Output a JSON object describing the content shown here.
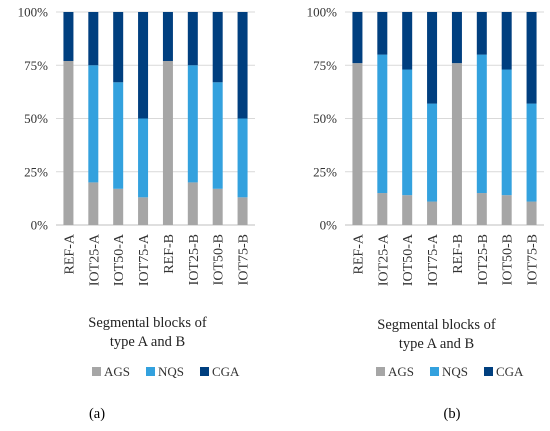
{
  "chart_data": [
    {
      "type": "bar",
      "stacked": true,
      "panel_label": "(a)",
      "categories": [
        "REF-A",
        "IOT25-A",
        "IOT50-A",
        "IOT75-A",
        "REF-B",
        "IOT25-B",
        "IOT50-B",
        "IOT75-B"
      ],
      "series": [
        {
          "name": "AGS",
          "color": "#a6a6a6",
          "values": [
            77,
            20,
            17,
            13,
            77,
            20,
            17,
            13
          ]
        },
        {
          "name": "NQS",
          "color": "#33a1de",
          "values": [
            0,
            55,
            50,
            37,
            0,
            55,
            50,
            37
          ]
        },
        {
          "name": "CGA",
          "color": "#003f7f",
          "values": [
            23,
            25,
            33,
            50,
            23,
            25,
            33,
            50
          ]
        }
      ],
      "ylim": [
        0,
        100
      ],
      "yticks": [
        "0%",
        "25%",
        "50%",
        "75%",
        "100%"
      ],
      "xlabel_lines": [
        "Segmental blocks of",
        "type A and B"
      ],
      "grid": true,
      "legend": "bottom"
    },
    {
      "type": "bar",
      "stacked": true,
      "panel_label": "(b)",
      "categories": [
        "REF-A",
        "IOT25-A",
        "IOT50-A",
        "IOT75-A",
        "REF-B",
        "IOT25-B",
        "IOT50-B",
        "IOT75-B"
      ],
      "series": [
        {
          "name": "AGS",
          "color": "#a6a6a6",
          "values": [
            76,
            15,
            14,
            11,
            76,
            15,
            14,
            11
          ]
        },
        {
          "name": "NQS",
          "color": "#33a1de",
          "values": [
            0,
            65,
            59,
            46,
            0,
            65,
            59,
            46
          ]
        },
        {
          "name": "CGA",
          "color": "#003f7f",
          "values": [
            24,
            20,
            27,
            43,
            24,
            20,
            27,
            43
          ]
        }
      ],
      "ylim": [
        0,
        100
      ],
      "yticks": [
        "0%",
        "25%",
        "50%",
        "75%",
        "100%"
      ],
      "xlabel_lines": [
        "Segmental blocks of",
        "type A and B"
      ],
      "grid": true,
      "legend": "bottom"
    }
  ]
}
